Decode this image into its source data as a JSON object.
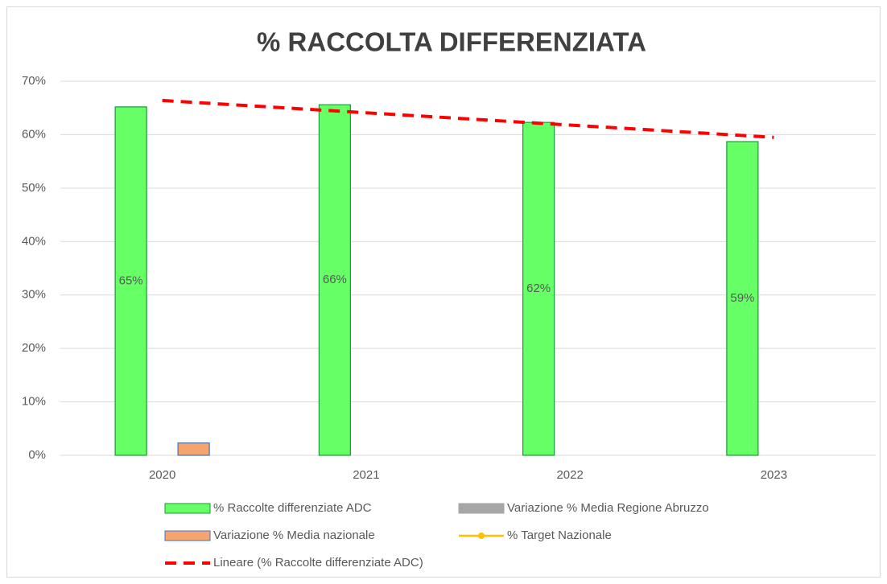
{
  "chart_data": {
    "type": "bar",
    "title": "% RACCOLTA DIFFERENZIATA",
    "categories": [
      "2020",
      "2021",
      "2022",
      "2023"
    ],
    "ylim": [
      0,
      70
    ],
    "yticks": [
      {
        "value": 0,
        "label": "0%"
      },
      {
        "value": 10,
        "label": "10%"
      },
      {
        "value": 20,
        "label": "20%"
      },
      {
        "value": 30,
        "label": "30%"
      },
      {
        "value": 40,
        "label": "40%"
      },
      {
        "value": 50,
        "label": "50%"
      },
      {
        "value": 60,
        "label": "60%"
      },
      {
        "value": 70,
        "label": "70%"
      }
    ],
    "grid": true,
    "series": [
      {
        "name": "% Raccolte differenziate ADC",
        "type": "bar",
        "color": "#66ff66",
        "edge": "#1a9a3a",
        "values": [
          65.2,
          65.6,
          62.3,
          58.7
        ],
        "value_labels": [
          "65%",
          "66%",
          "62%",
          "59%"
        ]
      },
      {
        "name": "Variazione % Media Regione Abruzzo",
        "type": "bar",
        "color": "#a6a6a6",
        "edge": "#a6a6a6",
        "values": [
          null,
          null,
          null,
          null
        ]
      },
      {
        "name": "Variazione % Media nazionale",
        "type": "bar",
        "color": "#f4a46c",
        "edge": "#4472c4",
        "values": [
          2.3,
          null,
          null,
          null
        ]
      },
      {
        "name": "% Target Nazionale",
        "type": "line",
        "color": "#ffc000",
        "marker": true,
        "values": [
          null,
          null,
          null,
          null
        ]
      },
      {
        "name": "Lineare (% Raccolte differenziate ADC)",
        "type": "line",
        "color": "#ff0000",
        "dashed": true,
        "values": [
          66.4,
          64.1,
          61.8,
          59.5
        ]
      }
    ]
  }
}
